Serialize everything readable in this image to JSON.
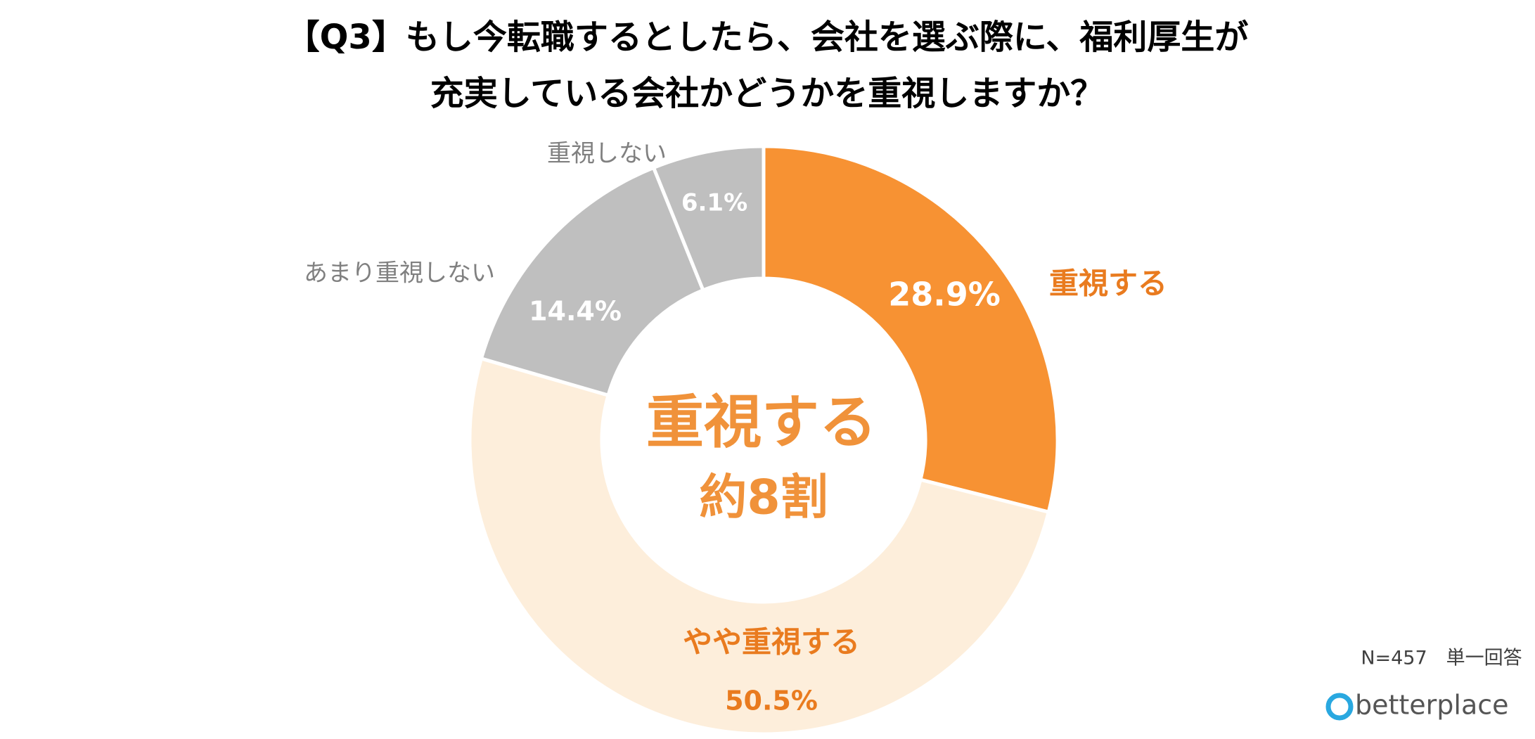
{
  "chart_data": {
    "type": "donut",
    "title": [
      "【Q3】もし今転職するとしたら、会社を選ぶ際に、福利厚生が",
      "充実している会社かどうかを重視しますか？"
    ],
    "categories": [
      "重視する",
      "やや重視する",
      "あまり重視しない",
      "重視しない"
    ],
    "values": [
      28.9,
      50.5,
      14.4,
      6.1
    ],
    "value_labels": [
      "28.9%",
      "50.5%",
      "14.4%",
      "6.1%"
    ],
    "colors": [
      "#f79233",
      "#fdeedb",
      "#bfbfbf",
      "#bfbfbf"
    ],
    "label_colors": [
      "#e97b1f",
      "#e97b1f",
      "#808080",
      "#808080"
    ],
    "value_label_colors": [
      "#ffffff",
      "#e97b1f",
      "#ffffff",
      "#ffffff"
    ],
    "annotations": [
      "重視する",
      "約8割"
    ],
    "note": "N=457　単一回答",
    "brand": "betterplace"
  }
}
